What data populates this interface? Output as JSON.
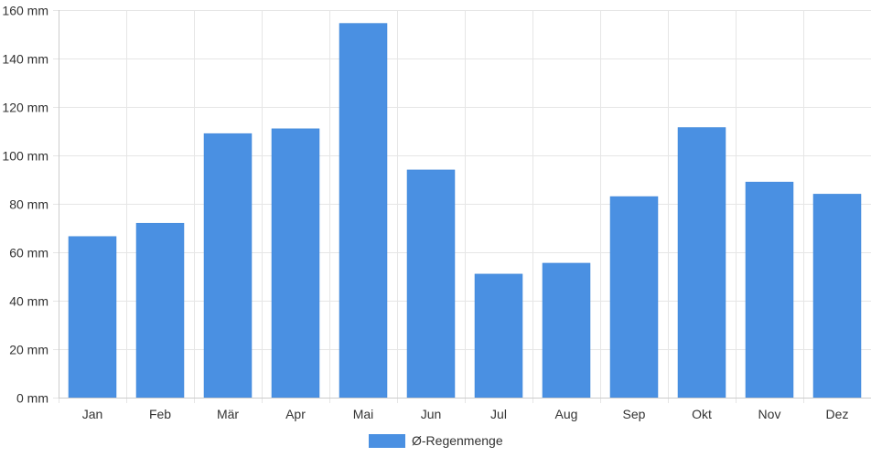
{
  "chart_data": {
    "type": "bar",
    "categories": [
      "Jan",
      "Feb",
      "Mär",
      "Apr",
      "Mai",
      "Jun",
      "Jul",
      "Aug",
      "Sep",
      "Okt",
      "Nov",
      "Dez"
    ],
    "series": [
      {
        "name": "Ø-Regenmenge",
        "values": [
          66.5,
          72,
          109,
          111,
          154.5,
          94,
          51,
          55.5,
          83,
          111.5,
          89,
          84
        ],
        "color": "#4a90e2"
      }
    ],
    "ylim": [
      0,
      160
    ],
    "y_ticks": [
      0,
      20,
      40,
      60,
      80,
      100,
      120,
      140,
      160
    ],
    "y_unit": "mm",
    "grid": true,
    "legend_position": "bottom"
  }
}
